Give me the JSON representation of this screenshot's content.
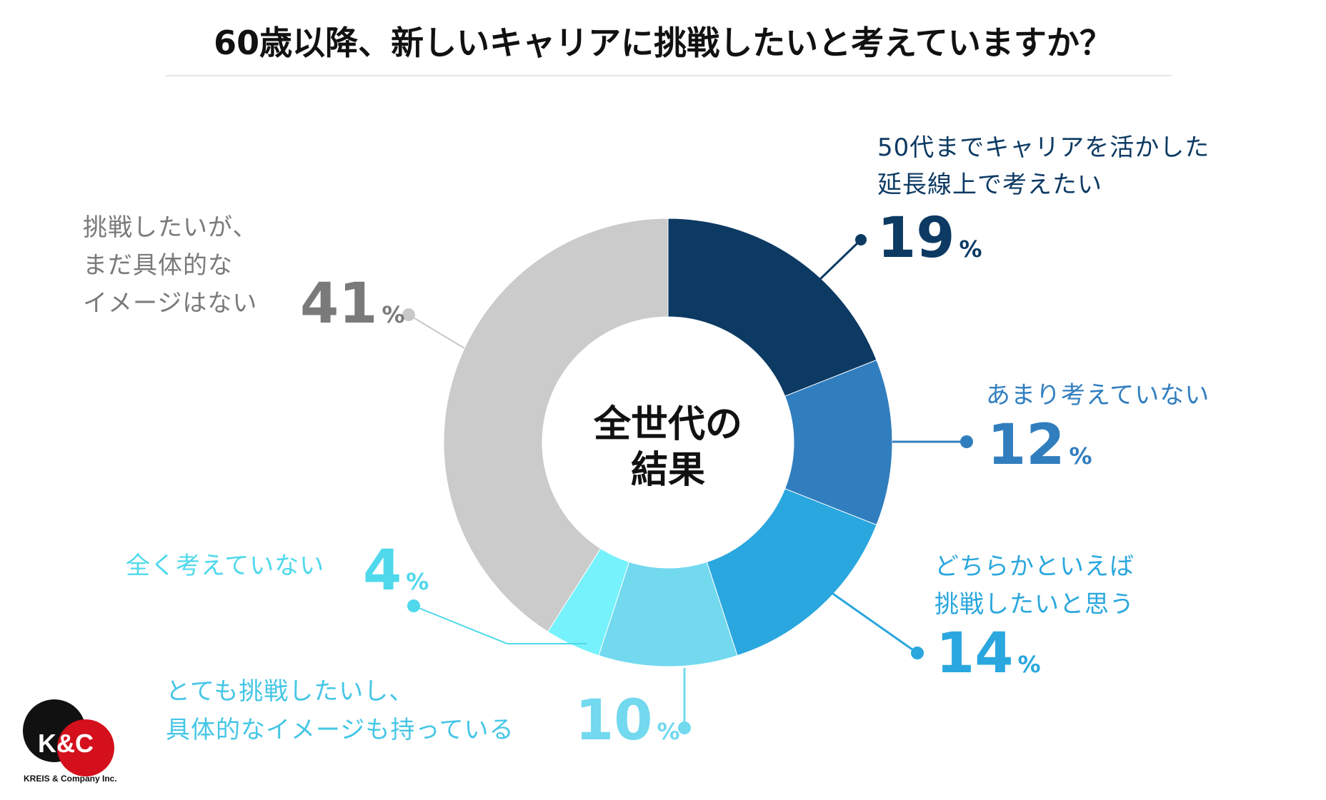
{
  "chart_data": {
    "type": "pie",
    "donut": true,
    "title": "60歳以降、新しいキャリアに挑戦したいと考えていますか？",
    "center_label": [
      "全世代の",
      "結果"
    ],
    "percent_sign": "%",
    "slices": [
      {
        "lines": [
          "50代までキャリアを活かした",
          "延長線上で考えたい"
        ],
        "value": 19,
        "color": "#0c3a63"
      },
      {
        "lines": [
          "あまり考えていない"
        ],
        "value": 12,
        "color": "#317ebf"
      },
      {
        "lines": [
          "どちらかといえば",
          "挑戦したいと思う"
        ],
        "value": 14,
        "color": "#2aa7de"
      },
      {
        "lines": [
          "とても挑戦したいし、",
          "具体的なイメージも持っている"
        ],
        "value": 10,
        "color": "#72d9ef"
      },
      {
        "lines": [
          "全く考えていない"
        ],
        "value": 4,
        "color": "#75f2fb"
      },
      {
        "lines": [
          "挑戦したいが、",
          "まだ具体的な",
          "イメージはない"
        ],
        "value": 41,
        "color": "#cbcbcb"
      }
    ]
  },
  "logo": {
    "mark": "K&C",
    "company": "KREIS & Company Inc."
  }
}
